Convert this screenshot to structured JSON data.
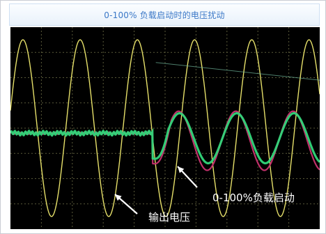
{
  "title": "0-100% 负载启动时的电压扰动",
  "annotations": {
    "output_voltage": "输出电压",
    "load_start": "0-100%负载启动"
  },
  "colors": {
    "background": "#000000",
    "grid": "#5a5a3a",
    "output_voltage_trace": "#e6e06a",
    "trace_magenta": "#c0306a",
    "trace_green": "#33d67a",
    "title_text": "#3b78c7"
  },
  "chart_data": {
    "type": "line",
    "title": "0-100% 负载启动时的电压扰动",
    "xlabel": "",
    "ylabel": "",
    "grid": true,
    "divisions": {
      "x": 10,
      "y": 8
    },
    "xlim": [
      0,
      10
    ],
    "ylim": [
      -4,
      4
    ],
    "load_step_at": 4.6,
    "series": [
      {
        "name": "输出电压",
        "kind": "sine",
        "amplitude": 3.5,
        "offset": 0,
        "period": 1.85,
        "phase": 0.2
      },
      {
        "name": "",
        "kind": "step-sine",
        "before": {
          "level": -0.2
        },
        "after": {
          "amplitude": 1.3,
          "offset": -0.5,
          "period": 1.85
        }
      },
      {
        "name": "",
        "kind": "step-sine",
        "before": {
          "level": -0.2
        },
        "after": {
          "amplitude": 1.1,
          "offset": -0.4,
          "period": 1.85
        }
      }
    ]
  }
}
